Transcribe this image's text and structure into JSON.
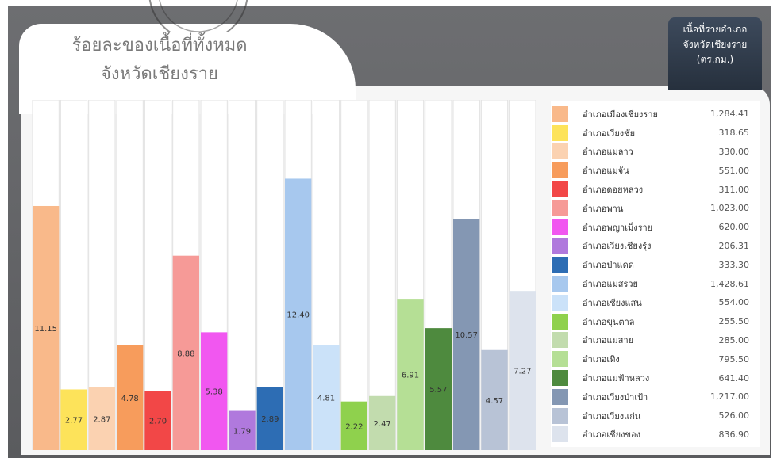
{
  "title_line1": "ร้อยละของเนื้อที่ทั้งหมด",
  "title_line2": "จังหวัดเชียงราย",
  "unit_line1": "เนื้อที่รายอำเภอ",
  "unit_line2": "จังหวัดเชียงราย",
  "unit_line3": "(ตร.กม.)",
  "chart_data": {
    "type": "bar",
    "title": "ร้อยละของเนื้อที่ทั้งหมด จังหวัดเชียงราย",
    "ylim": [
      0,
      16
    ],
    "grid": false,
    "legend_position": "right",
    "series": [
      {
        "name": "อำเภอเมืองเชียงราย",
        "area": "1,284.41",
        "percent": 11.15,
        "label": "11.15",
        "color": "#f9b98a"
      },
      {
        "name": "อำเภอเวียงชัย",
        "area": "318.65",
        "percent": 2.77,
        "label": "2.77",
        "color": "#fde35a"
      },
      {
        "name": "อำเภอแม่ลาว",
        "area": "330.00",
        "percent": 2.87,
        "label": "2.87",
        "color": "#fbd2b1"
      },
      {
        "name": "อำเภอแม่จัน",
        "area": "551.00",
        "percent": 4.78,
        "label": "4.78",
        "color": "#f79c5c"
      },
      {
        "name": "อำเภอดอยหลวง",
        "area": "311.00",
        "percent": 2.7,
        "label": "2.70",
        "color": "#f24747"
      },
      {
        "name": "อำเภอพาน",
        "area": "1,023.00",
        "percent": 8.88,
        "label": "8.88",
        "color": "#f69a97"
      },
      {
        "name": "อำเภอพญาเม็งราย",
        "area": "620.00",
        "percent": 5.38,
        "label": "5.38",
        "color": "#f157f0"
      },
      {
        "name": "อำเภอเวียงเชียงรุ้ง",
        "area": "206.31",
        "percent": 1.79,
        "label": "1.79",
        "color": "#b079dd"
      },
      {
        "name": "อำเภอป่าแดด",
        "area": "333.30",
        "percent": 2.89,
        "label": "2.89",
        "color": "#2d6db4"
      },
      {
        "name": "อำเภอแม่สรวย",
        "area": "1,428.61",
        "percent": 12.4,
        "label": "12.40",
        "color": "#a7c8ee"
      },
      {
        "name": "อำเภอเชียงแสน",
        "area": "554.00",
        "percent": 4.81,
        "label": "4.81",
        "color": "#cbe2f9"
      },
      {
        "name": "อำเภอขุนตาล",
        "area": "255.50",
        "percent": 2.22,
        "label": "2.22",
        "color": "#8fd14d"
      },
      {
        "name": "อำเภอแม่สาย",
        "area": "285.00",
        "percent": 2.47,
        "label": "2.47",
        "color": "#c2dcae"
      },
      {
        "name": "อำเภอเทิง",
        "area": "795.50",
        "percent": 6.91,
        "label": "6.91",
        "color": "#b5df95"
      },
      {
        "name": "อำเภอแม่ฟ้าหลวง",
        "area": "641.40",
        "percent": 5.57,
        "label": "5.57",
        "color": "#4e8a3e"
      },
      {
        "name": "อำเภอเวียงป่าเป้า",
        "area": "1,217.00",
        "percent": 10.57,
        "label": "10.57",
        "color": "#8497b3"
      },
      {
        "name": "อำเภอเวียงแก่น",
        "area": "526.00",
        "percent": 4.57,
        "label": "4.57",
        "color": "#b8c3d6"
      },
      {
        "name": "อำเภอเชียงของ",
        "area": "836.90",
        "percent": 7.27,
        "label": "7.27",
        "color": "#dde3ed"
      }
    ]
  }
}
